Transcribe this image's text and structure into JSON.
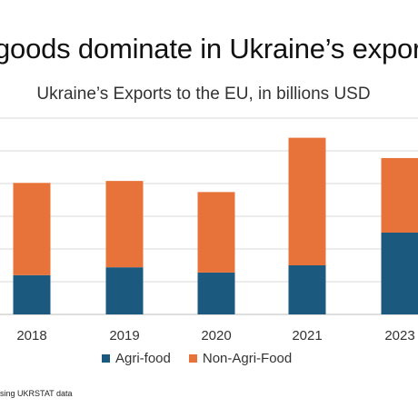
{
  "headline": "goods dominate in Ukraine’s expor",
  "source_text": "sing UKRSTAT data",
  "chart_data": {
    "type": "bar",
    "stacked": true,
    "title": "Ukraine’s Exports to the EU, in billions USD",
    "categories": [
      "2018",
      "2019",
      "2020",
      "2021",
      "2023"
    ],
    "series": [
      {
        "name": "Agri-food",
        "color": "#1b5a7e",
        "values": [
          6.0,
          7.2,
          6.4,
          7.5,
          12.5
        ]
      },
      {
        "name": "Non-Agri-Food",
        "color": "#e8733a",
        "values": [
          14.1,
          13.2,
          12.3,
          19.5,
          11.4
        ]
      }
    ],
    "ylim": [
      0,
      30
    ],
    "grid": true,
    "legend": "bottom"
  }
}
